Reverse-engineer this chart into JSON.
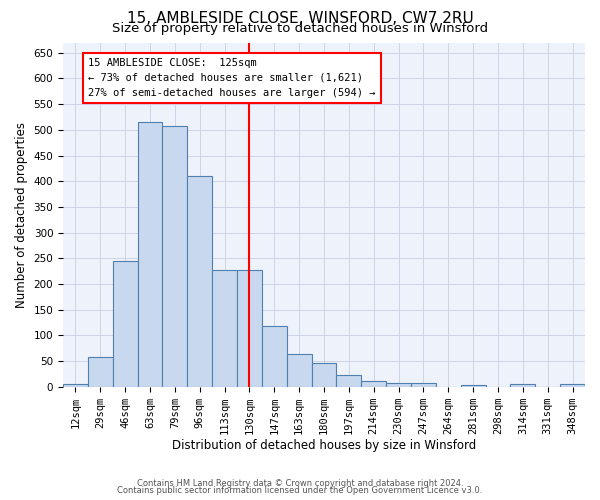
{
  "title": "15, AMBLESIDE CLOSE, WINSFORD, CW7 2RU",
  "subtitle": "Size of property relative to detached houses in Winsford",
  "xlabel": "Distribution of detached houses by size in Winsford",
  "ylabel": "Number of detached properties",
  "categories": [
    "12sqm",
    "29sqm",
    "46sqm",
    "63sqm",
    "79sqm",
    "96sqm",
    "113sqm",
    "130sqm",
    "147sqm",
    "163sqm",
    "180sqm",
    "197sqm",
    "214sqm",
    "230sqm",
    "247sqm",
    "264sqm",
    "281sqm",
    "298sqm",
    "314sqm",
    "331sqm",
    "348sqm"
  ],
  "values": [
    5,
    58,
    245,
    515,
    507,
    410,
    228,
    228,
    119,
    63,
    46,
    22,
    12,
    8,
    8,
    0,
    3,
    0,
    6,
    0,
    6
  ],
  "bar_color": "#c8d8ee",
  "bar_edge_color": "#5080b0",
  "property_line_x": 7.0,
  "annotation_line1": "15 AMBLESIDE CLOSE:  125sqm",
  "annotation_line2": "← 73% of detached houses are smaller (1,621)",
  "annotation_line3": "27% of semi-detached houses are larger (594) →",
  "footer1": "Contains HM Land Registry data © Crown copyright and database right 2024.",
  "footer2": "Contains public sector information licensed under the Open Government Licence v3.0.",
  "ylim": [
    0,
    670
  ],
  "yticks": [
    0,
    50,
    100,
    150,
    200,
    250,
    300,
    350,
    400,
    450,
    500,
    550,
    600,
    650
  ],
  "bg_color": "#eef2fa",
  "grid_color": "#c8d0e4",
  "title_fontsize": 11,
  "subtitle_fontsize": 9.5,
  "tick_fontsize": 7.5,
  "ylabel_fontsize": 8.5,
  "xlabel_fontsize": 8.5,
  "annotation_fontsize": 7.5,
  "footer_fontsize": 6
}
